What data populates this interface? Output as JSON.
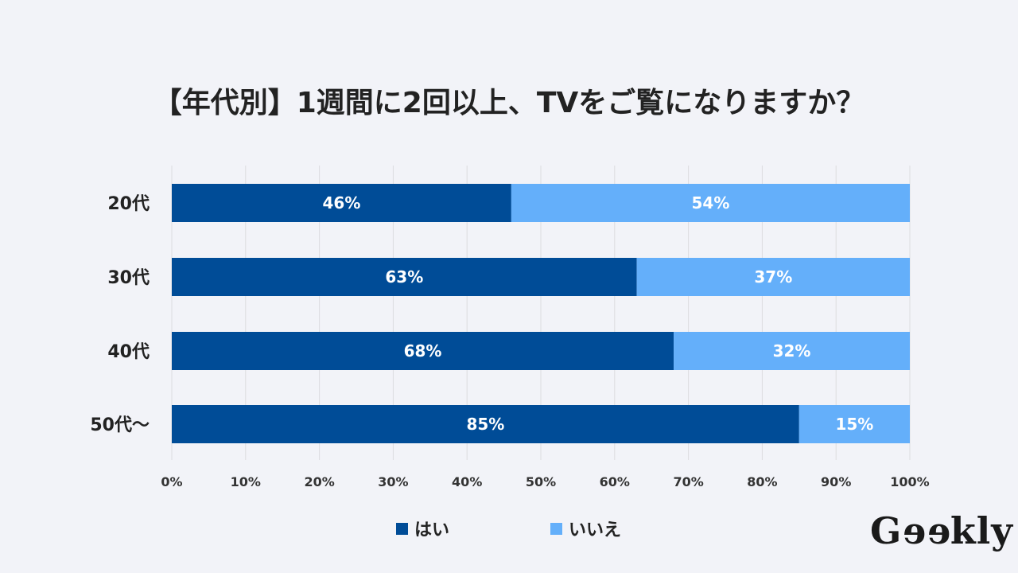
{
  "chart_data": {
    "type": "bar",
    "orientation": "horizontal",
    "stacked": true,
    "title": "【年代別】1週間に2回以上、TVをご覧になりますか？",
    "categories": [
      "20代",
      "30代",
      "40代",
      "50代〜"
    ],
    "series": [
      {
        "name": "はい",
        "color": "#004c97",
        "values": [
          46,
          63,
          68,
          85
        ],
        "labels": [
          "46%",
          "63%",
          "68%",
          "85%"
        ]
      },
      {
        "name": "いいえ",
        "color": "#64affa",
        "values": [
          54,
          37,
          32,
          15
        ],
        "labels": [
          "54%",
          "37%",
          "32%",
          "15%"
        ]
      }
    ],
    "xlim": [
      0,
      100
    ],
    "xticks": [
      0,
      10,
      20,
      30,
      40,
      50,
      60,
      70,
      80,
      90,
      100
    ],
    "xtick_labels": [
      "0%",
      "10%",
      "20%",
      "30%",
      "40%",
      "50%",
      "60%",
      "70%",
      "80%",
      "90%",
      "100%"
    ],
    "grid": true,
    "legend": "bottom-center"
  },
  "logo": "Geekly"
}
